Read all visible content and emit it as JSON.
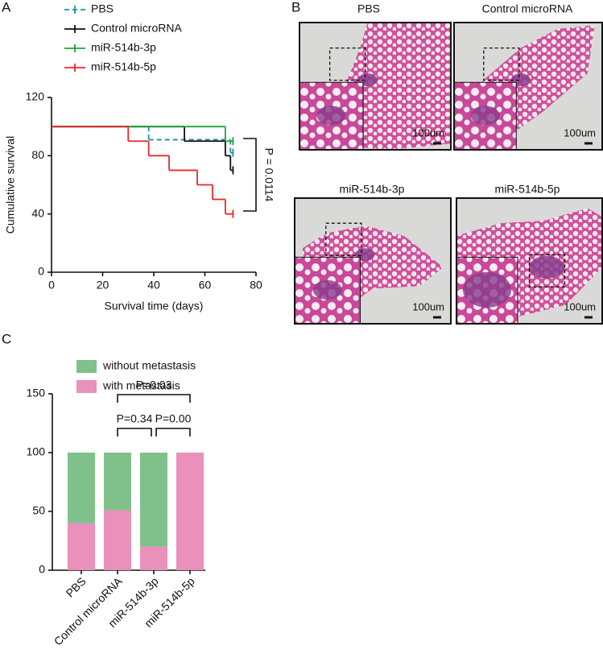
{
  "chart_data": [
    {
      "type": "step",
      "panel": "A",
      "xlabel": "Survival time (days)",
      "ylabel": "Cumulative survival",
      "xlim": [
        0,
        80
      ],
      "xticks": [
        0,
        20,
        40,
        60,
        80
      ],
      "ylim": [
        0,
        120
      ],
      "yticks": [
        0,
        40,
        80,
        120
      ],
      "series": [
        {
          "name": "PBS",
          "color": "#1f8fa8",
          "dashed": true,
          "x": [
            0,
            38,
            70,
            71
          ],
          "values": [
            100,
            91,
            82,
            82
          ]
        },
        {
          "name": "Control microRNA",
          "color": "#111111",
          "x": [
            0,
            52,
            68,
            70,
            71
          ],
          "values": [
            100,
            90,
            80,
            70,
            70
          ]
        },
        {
          "name": "miR-514b-3p",
          "color": "#1fa33a",
          "x": [
            0,
            68,
            71
          ],
          "values": [
            100,
            90,
            90
          ]
        },
        {
          "name": "miR-514b-5p",
          "color": "#e8282b",
          "x": [
            0,
            30,
            38,
            46,
            57,
            63,
            68,
            71
          ],
          "values": [
            100,
            90,
            80,
            70,
            60,
            50,
            40,
            40
          ]
        }
      ],
      "annotation": "P = 0.0114"
    },
    {
      "type": "stacked_bar",
      "panel": "C",
      "categories": [
        "PBS",
        "Control microRNA",
        "miR-514b-3p",
        "miR-514b-5p"
      ],
      "ylim": [
        0,
        150
      ],
      "yticks": [
        0,
        50,
        100,
        150
      ],
      "series": [
        {
          "name": "with metastasis",
          "color": "#e990bb",
          "values": [
            40,
            51,
            20,
            100
          ]
        },
        {
          "name": "without metastasis",
          "color": "#80c18b",
          "values": [
            60,
            49,
            80,
            0
          ]
        }
      ],
      "annotations": [
        "P=0.03",
        "P=0.34",
        "P=0.00"
      ]
    }
  ],
  "panel_b": {
    "panel": "B",
    "images": [
      {
        "title": "PBS",
        "scale": "100um"
      },
      {
        "title": "Control microRNA",
        "scale": "100um"
      },
      {
        "title": "miR-514b-3p",
        "scale": "100um"
      },
      {
        "title": "miR-514b-5p",
        "scale": "100um"
      }
    ]
  }
}
